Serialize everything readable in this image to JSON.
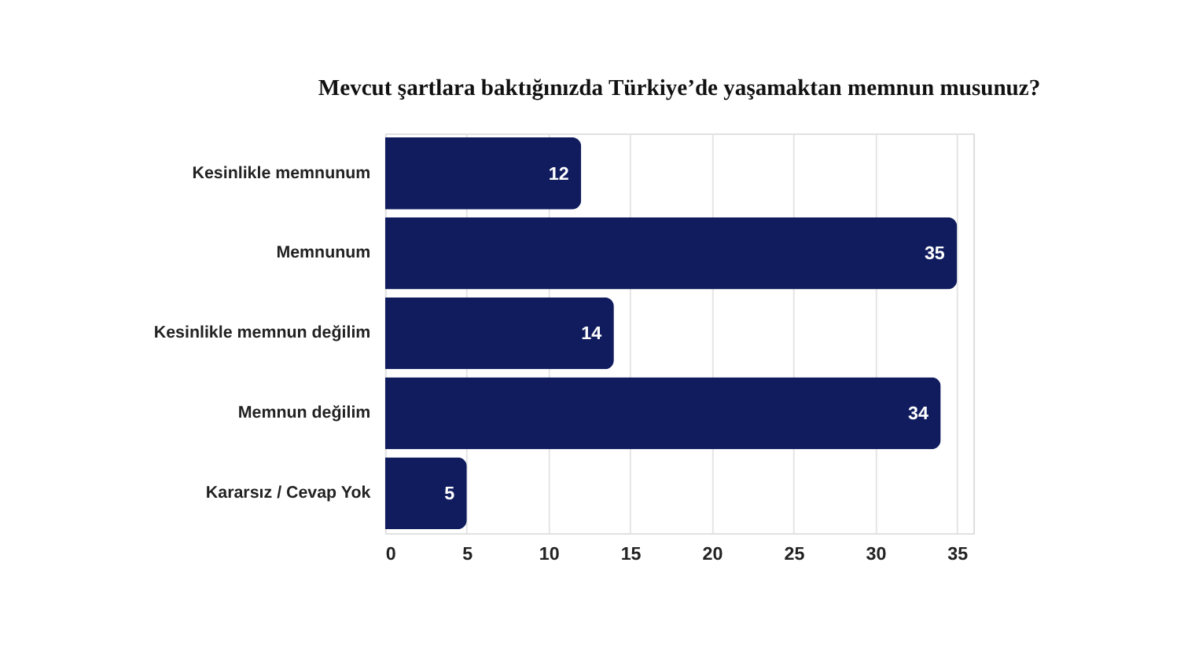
{
  "chart_data": {
    "type": "bar",
    "orientation": "horizontal",
    "title": "Mevcut şartlara baktığınızda Türkiye’de yaşamaktan memnun musunuz?",
    "categories": [
      "Kesinlikle memnunum",
      "Memnunum",
      "Kesinlikle memnun değilim",
      "Memnun değilim",
      "Kararsız / Cevap Yok"
    ],
    "values": [
      12,
      35,
      14,
      34,
      5
    ],
    "color": "#101c5e",
    "xlim": [
      0,
      36
    ],
    "xticks": [
      0,
      5,
      10,
      15,
      20,
      25,
      30,
      35
    ],
    "grid": "x",
    "data_labels": true
  }
}
